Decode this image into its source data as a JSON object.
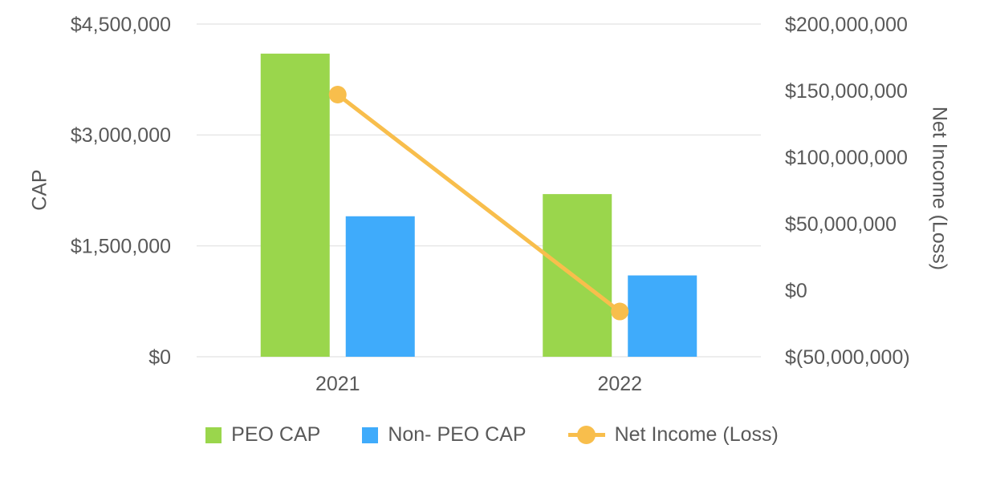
{
  "colors": {
    "background": "#FFFFFF",
    "text": "#595959",
    "grid": "#E7E7E7",
    "peo_cap_green": "#9AD64C",
    "non_peo_cap_blue": "#3FABFB",
    "net_income_orange": "#F8BE4C"
  },
  "chart_data": {
    "type": "bar",
    "subtype": "combo-bar-line-dual-axis",
    "categories": [
      "2021",
      "2022"
    ],
    "series": [
      {
        "name": "PEO CAP",
        "type": "bar",
        "axis": "left",
        "color": "#9AD64C",
        "values": [
          4100000,
          2200000
        ]
      },
      {
        "name": "Non- PEO CAP",
        "type": "bar",
        "axis": "left",
        "color": "#3FABFB",
        "values": [
          1900000,
          1100000
        ]
      },
      {
        "name": "Net Income (Loss)",
        "type": "line",
        "axis": "right",
        "color": "#F8BE4C",
        "values": [
          147000000,
          -16000000
        ]
      }
    ],
    "left_axis": {
      "label": "CAP",
      "ylim": [
        0,
        4500000
      ],
      "tick_step": 1500000,
      "tick_labels": [
        "$0",
        "$1,500,000",
        "$3,000,000",
        "$4,500,000"
      ]
    },
    "right_axis": {
      "label": "Net Income (Loss)",
      "ylim": [
        -50000000,
        200000000
      ],
      "tick_step": 50000000,
      "tick_labels": [
        "$(50,000,000)",
        "$0",
        "$50,000,000",
        "$100,000,000",
        "$150,000,000",
        "$200,000,000"
      ]
    },
    "grid": true,
    "legend_position": "bottom"
  },
  "legend": {
    "items": [
      {
        "label": "PEO CAP",
        "color": "#9AD64C",
        "marker": "square"
      },
      {
        "label": "Non- PEO CAP",
        "color": "#3FABFB",
        "marker": "square"
      },
      {
        "label": "Net Income (Loss)",
        "color": "#F8BE4C",
        "marker": "line-circle"
      }
    ]
  }
}
